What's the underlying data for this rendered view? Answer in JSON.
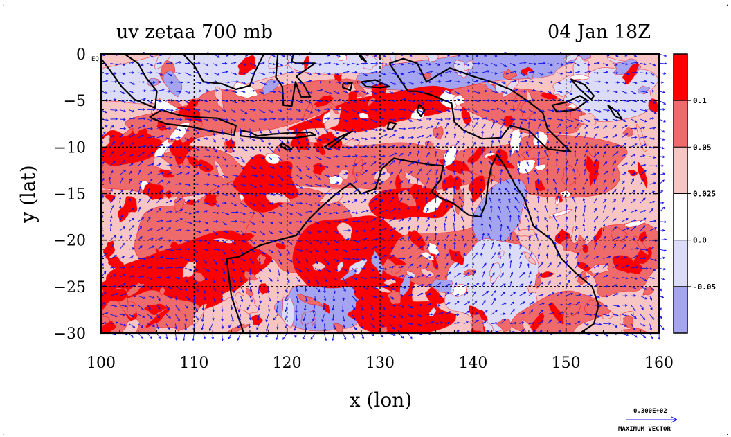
{
  "chart_data": {
    "type": "heatmap",
    "title_left": "uv zetaa 700 mb",
    "title_right": "04 Jan 18Z",
    "xlabel": "x (lon)",
    "ylabel": "y (lat)",
    "xlim": [
      100,
      160
    ],
    "ylim": [
      -30,
      0
    ],
    "x_ticks": [
      100,
      110,
      120,
      130,
      140,
      150,
      160
    ],
    "y_ticks": [
      0,
      -5,
      -10,
      -15,
      -20,
      -25,
      -30
    ],
    "x_tick_labels": [
      "100",
      "110",
      "120",
      "130",
      "140",
      "150",
      "160"
    ],
    "y_tick_labels": [
      "0",
      "−5",
      "−10",
      "−15",
      "−20",
      "−25",
      "−30"
    ],
    "equator_label": "EQ",
    "grid": true,
    "gridlines_lon": [
      110,
      120,
      130,
      140,
      150
    ],
    "gridlines_lat": [
      -5,
      -10,
      -15,
      -20,
      -25
    ],
    "colorbar": {
      "levels": [
        "0.1",
        "0.05",
        "0.025",
        "0.0",
        "-0.05"
      ],
      "bins": [
        {
          "range": "> 0.1",
          "color": "#ff0000"
        },
        {
          "range": "0.05 to 0.1",
          "color": "#ef6b6b"
        },
        {
          "range": "0.025 to 0.05",
          "color": "#f8c5c5"
        },
        {
          "range": "0.0 to 0.025",
          "color": "#ffffff"
        },
        {
          "range": "-0.05 to 0.0",
          "color": "#dcdcf8"
        },
        {
          "range": "< -0.05",
          "color": "#a4a4f0"
        }
      ]
    },
    "vector_color": "#1010ee",
    "coastline_color": "#000000",
    "contour_color": "#ee0000",
    "max_vector": {
      "value": "0.300E+02",
      "label": "MAXIMUM VECTOR"
    }
  }
}
